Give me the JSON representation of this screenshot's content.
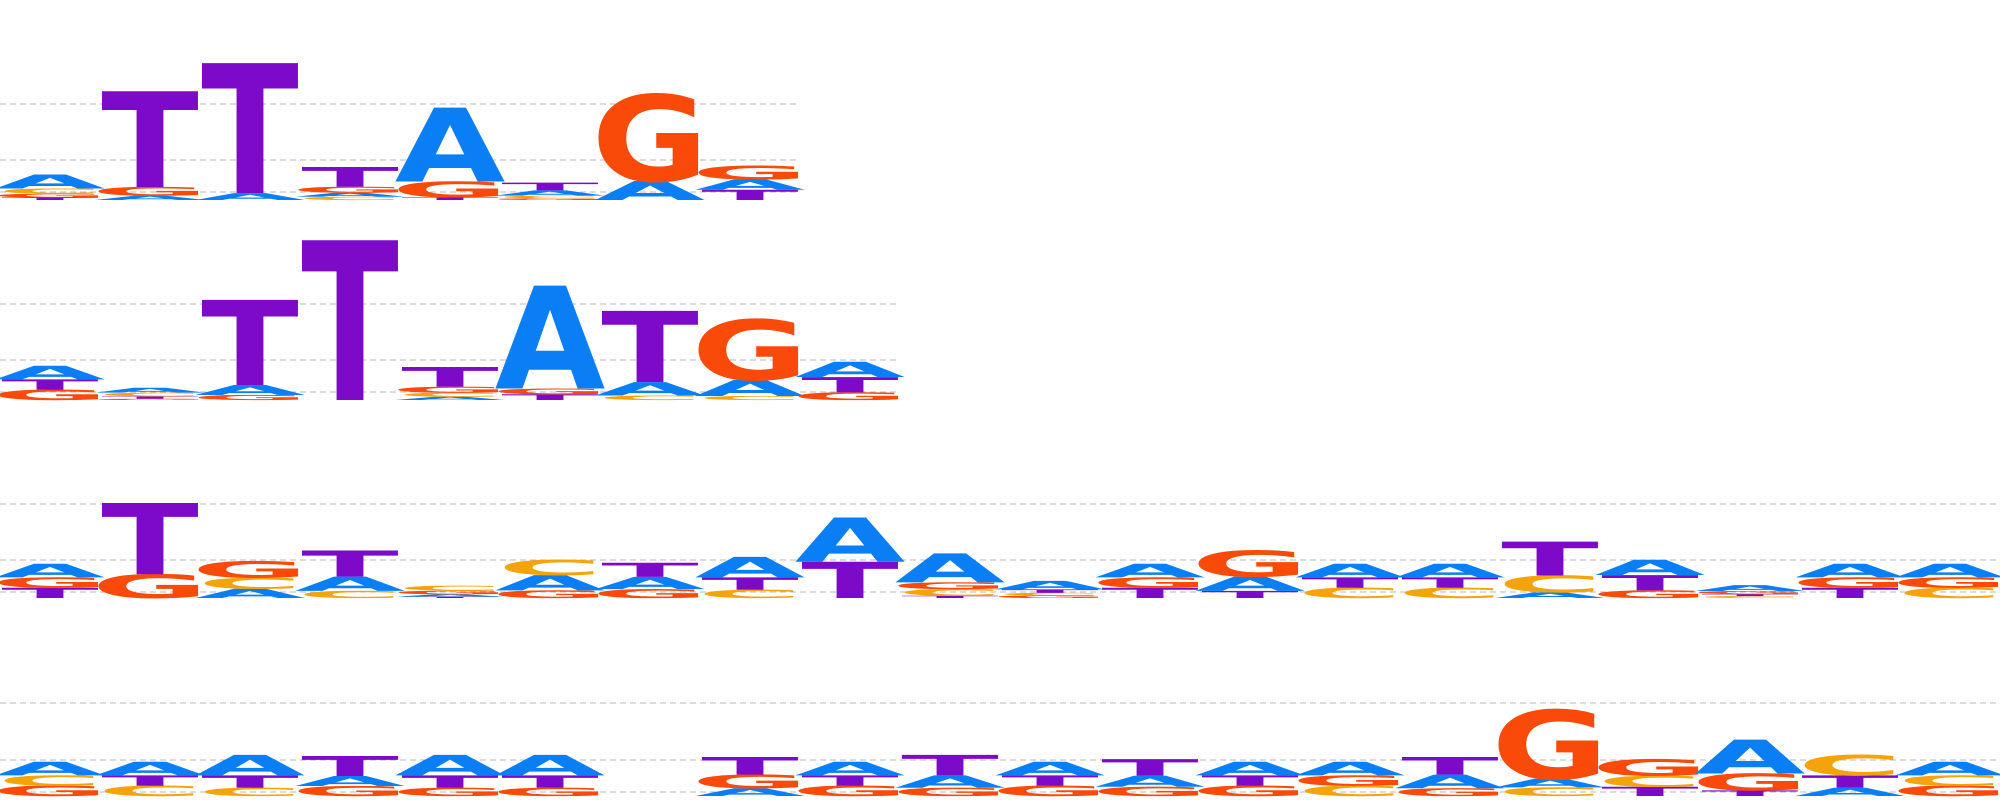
{
  "colors": {
    "A": "#0a7ff5",
    "C": "#f5a30a",
    "G": "#fa4a0a",
    "T": "#7d0ac8",
    "grid": "#b8b8b8"
  },
  "motifs": [
    {
      "columns": [
        {
          "T": 0.1,
          "A": 0.55,
          "C": 0.2,
          "G": 0.15
        },
        {
          "T": 0.88,
          "G": 0.08,
          "A": 0.04
        },
        {
          "T": 0.95,
          "A": 0.05
        },
        {
          "T": 0.6,
          "G": 0.18,
          "A": 0.12,
          "C": 0.1
        },
        {
          "A": 0.8,
          "G": 0.17,
          "T": 0.03
        },
        {
          "T": 0.45,
          "A": 0.3,
          "C": 0.15,
          "G": 0.1
        },
        {
          "G": 0.82,
          "A": 0.18
        },
        {
          "G": 0.4,
          "T": 0.3,
          "A": 0.3
        }
      ]
    },
    {
      "columns": [
        {
          "A": 0.4,
          "G": 0.3,
          "T": 0.3
        },
        {
          "A": 0.4,
          "C": 0.3,
          "T": 0.2,
          "G": 0.1
        },
        {
          "T": 0.85,
          "A": 0.1,
          "G": 0.05
        },
        {
          "T": 1.0
        },
        {
          "T": 0.6,
          "G": 0.18,
          "C": 0.12,
          "A": 0.1
        },
        {
          "A": 0.9,
          "T": 0.05,
          "G": 0.05
        },
        {
          "T": 0.8,
          "A": 0.15,
          "C": 0.05
        },
        {
          "G": 0.75,
          "A": 0.2,
          "C": 0.05
        },
        {
          "T": 0.4,
          "A": 0.4,
          "G": 0.2
        }
      ]
    },
    {
      "columns": [
        {
          "A": 0.4,
          "T": 0.3,
          "G": 0.3
        },
        {
          "T": 0.75,
          "G": 0.25
        },
        {
          "G": 0.45,
          "C": 0.3,
          "A": 0.25
        },
        {
          "T": 0.55,
          "A": 0.3,
          "C": 0.15
        },
        {
          "C": 0.4,
          "G": 0.3,
          "A": 0.2,
          "T": 0.1
        },
        {
          "A": 0.4,
          "C": 0.4,
          "G": 0.2
        },
        {
          "T": 0.4,
          "A": 0.35,
          "G": 0.25
        },
        {
          "A": 0.5,
          "T": 0.3,
          "C": 0.2
        },
        {
          "A": 0.55,
          "T": 0.45
        },
        {
          "A": 0.65,
          "C": 0.15,
          "G": 0.15,
          "T": 0.05
        },
        {
          "A": 0.5,
          "T": 0.2,
          "G": 0.15,
          "C": 0.15
        },
        {
          "A": 0.4,
          "T": 0.3,
          "G": 0.3
        },
        {
          "G": 0.55,
          "A": 0.3,
          "T": 0.15
        },
        {
          "A": 0.4,
          "C": 0.3,
          "T": 0.3
        },
        {
          "A": 0.4,
          "C": 0.3,
          "T": 0.3
        },
        {
          "T": 0.6,
          "C": 0.3,
          "A": 0.1
        },
        {
          "T": 0.4,
          "A": 0.4,
          "G": 0.2
        },
        {
          "A": 0.45,
          "G": 0.25,
          "C": 0.15,
          "T": 0.15
        },
        {
          "A": 0.4,
          "T": 0.3,
          "G": 0.3
        },
        {
          "A": 0.4,
          "C": 0.3,
          "G": 0.3
        }
      ]
    },
    {
      "columns": [
        {
          "A": 0.4,
          "G": 0.3,
          "C": 0.3
        },
        {
          "A": 0.4,
          "C": 0.3,
          "T": 0.3
        },
        {
          "A": 0.5,
          "T": 0.3,
          "C": 0.2
        },
        {
          "T": 0.5,
          "G": 0.25,
          "A": 0.25
        },
        {
          "A": 0.5,
          "T": 0.3,
          "G": 0.2
        },
        {
          "A": 0.5,
          "T": 0.3,
          "G": 0.2
        },
        {
          "A": 0.0
        },
        {
          "T": 0.45,
          "G": 0.35,
          "A": 0.2
        },
        {
          "A": 0.4,
          "G": 0.3,
          "T": 0.3
        },
        {
          "T": 0.5,
          "A": 0.3,
          "G": 0.2
        },
        {
          "A": 0.4,
          "G": 0.3,
          "T": 0.3
        },
        {
          "T": 0.45,
          "A": 0.3,
          "G": 0.25
        },
        {
          "A": 0.4,
          "G": 0.3,
          "T": 0.3
        },
        {
          "A": 0.4,
          "C": 0.3,
          "G": 0.3
        },
        {
          "T": 0.45,
          "A": 0.35,
          "G": 0.2
        },
        {
          "G": 0.8,
          "C": 0.1,
          "A": 0.1
        },
        {
          "G": 0.45,
          "C": 0.3,
          "T": 0.25
        },
        {
          "A": 0.6,
          "G": 0.3,
          "T": 0.1
        },
        {
          "C": 0.5,
          "T": 0.3,
          "A": 0.2
        },
        {
          "A": 0.4,
          "G": 0.3,
          "C": 0.3
        }
      ]
    }
  ]
}
